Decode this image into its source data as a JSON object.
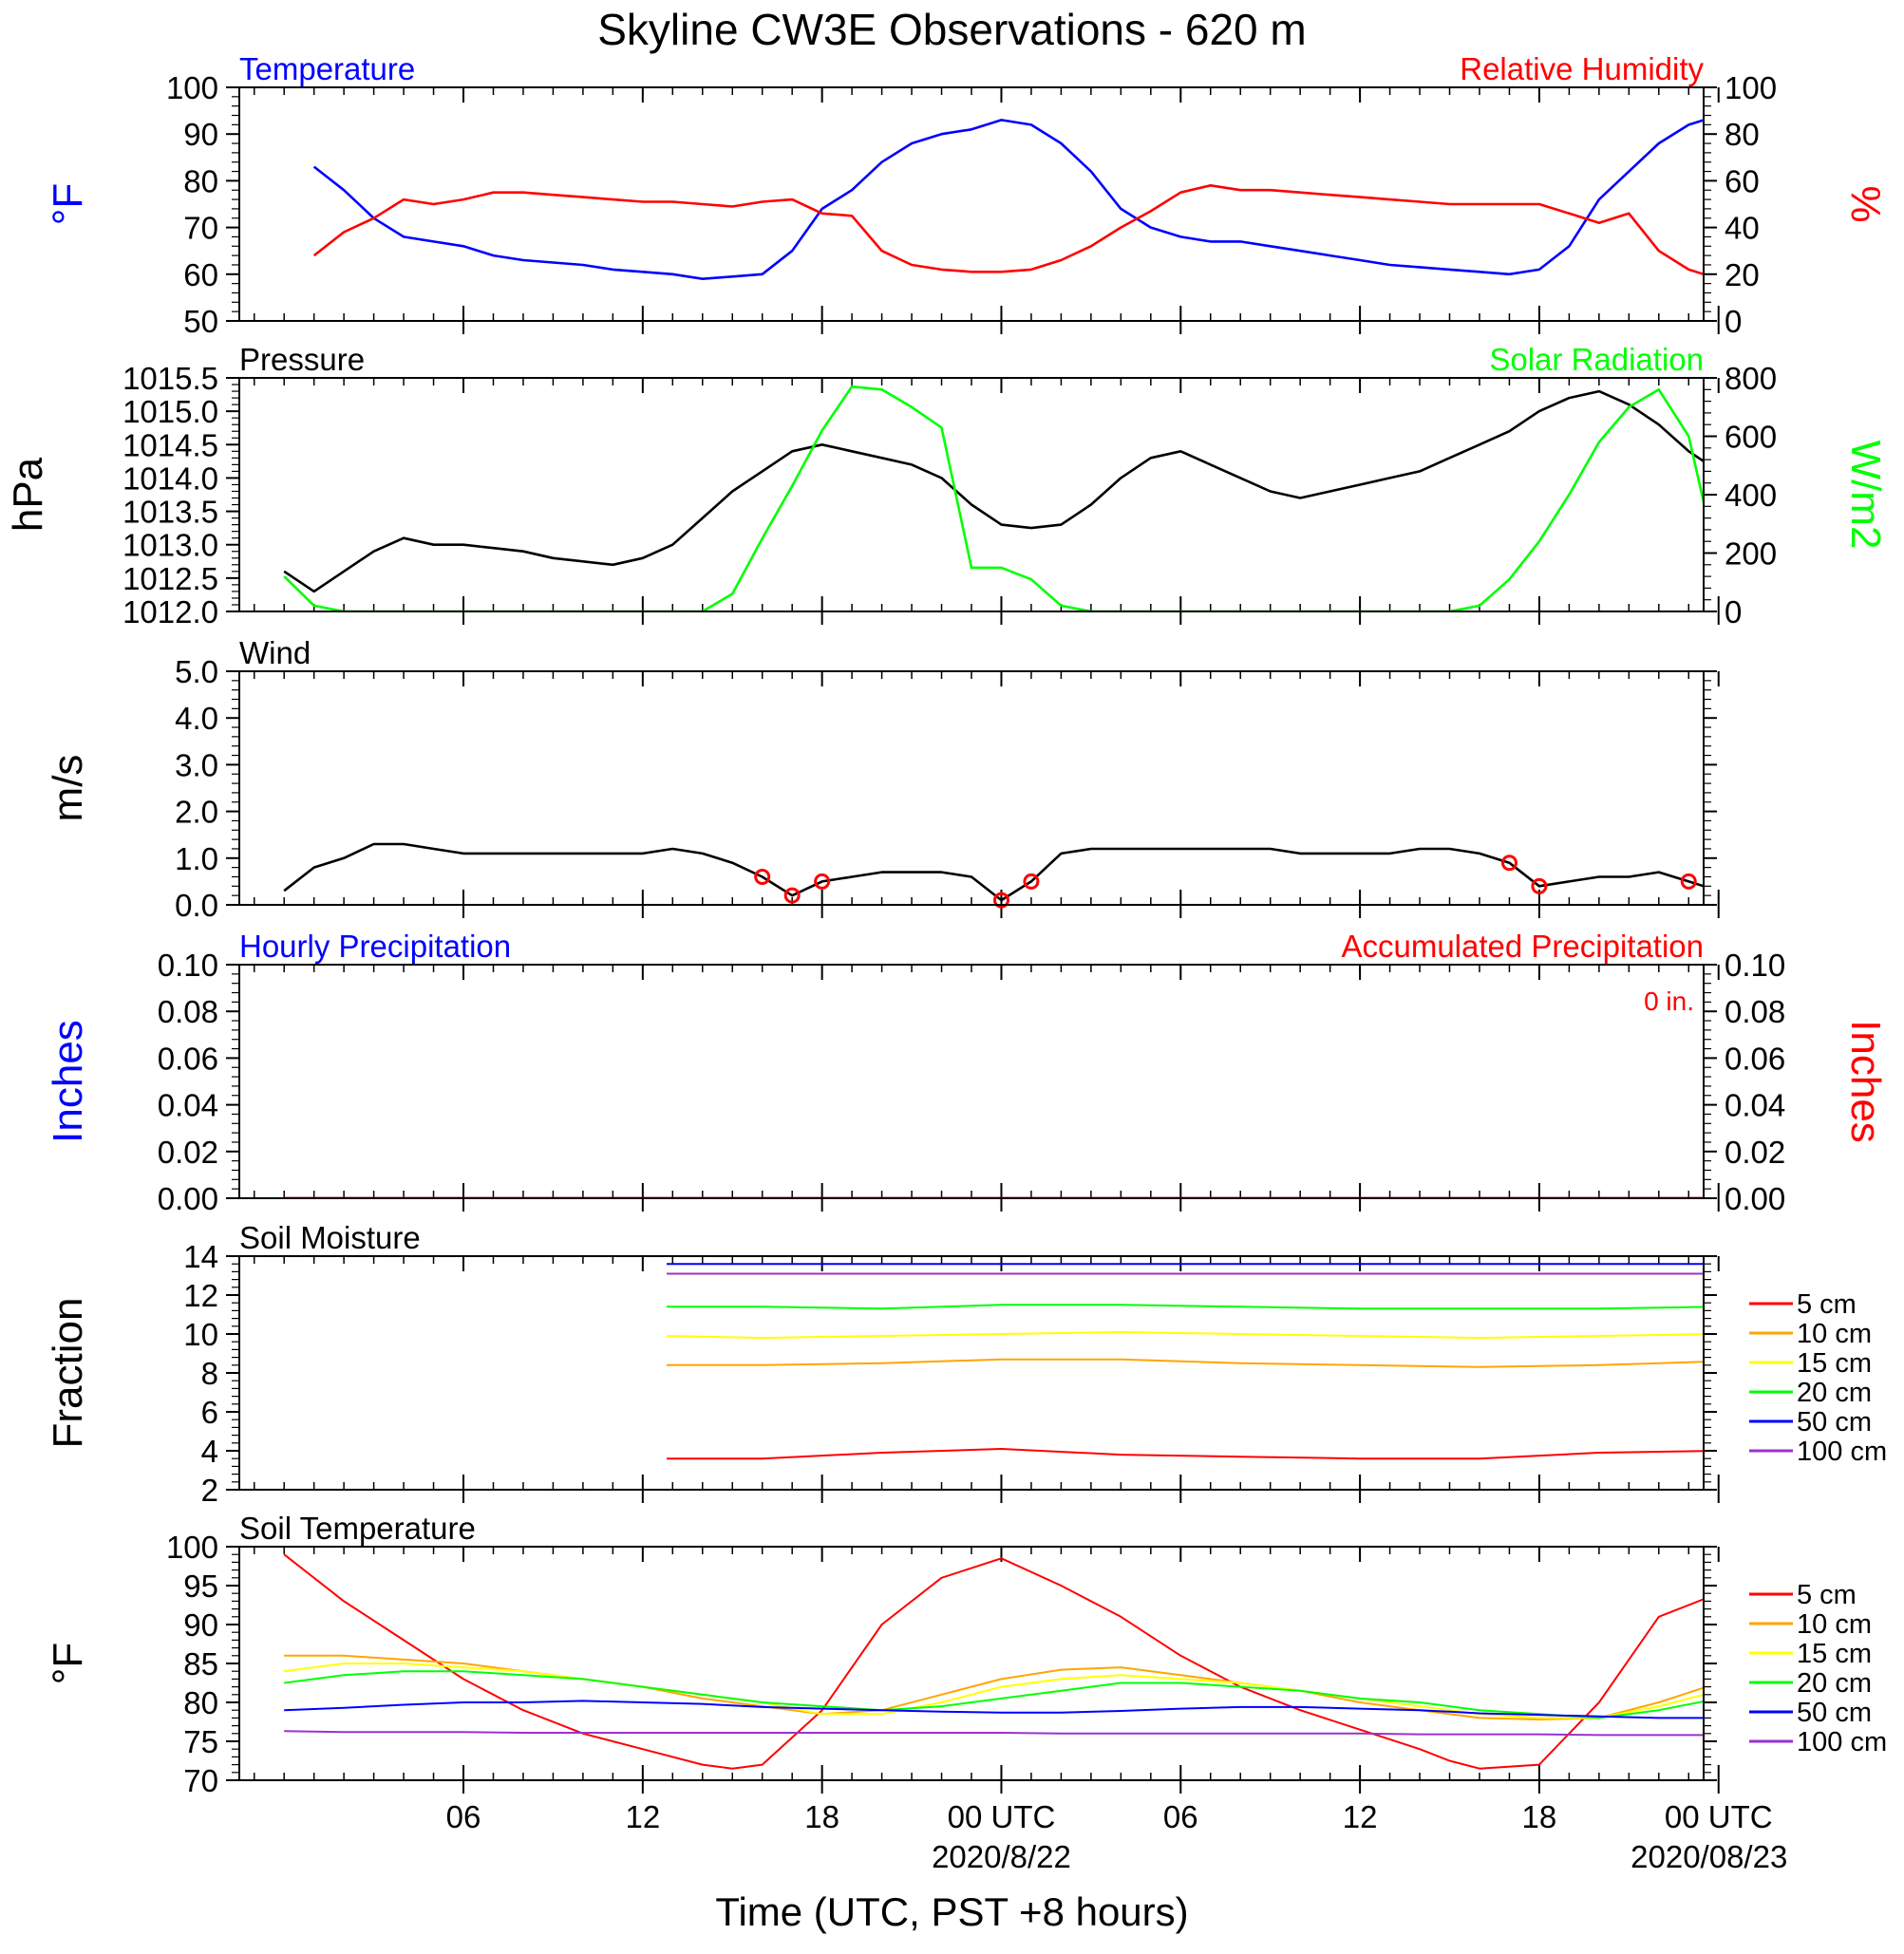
{
  "title": "Skyline CW3E Observations - 620 m",
  "x_axis": {
    "label": "Time (UTC, PST +8 hours)",
    "tick_labels": [
      "06",
      "12",
      "18",
      "00 UTC",
      "06",
      "12",
      "18",
      "00 UTC"
    ],
    "date_labels": [
      "2020/8/22",
      "2020/08/23"
    ]
  },
  "chart_data": [
    {
      "type": "line",
      "panel": "temperature-humidity",
      "left_title": "Temperature",
      "right_title": "Relative Humidity",
      "ylabel_left": "°F",
      "ylabel_right": "%",
      "ylim_left": [
        50,
        100
      ],
      "ylim_right": [
        0,
        100
      ],
      "yticks_left": [
        "50",
        "60",
        "70",
        "80",
        "90",
        "100"
      ],
      "yticks_right": [
        "0",
        "20",
        "40",
        "60",
        "80",
        "100"
      ],
      "x_hours": [
        1,
        2,
        3,
        4,
        5,
        6,
        7,
        8,
        9,
        10,
        11,
        12,
        13,
        14,
        15,
        16,
        17,
        18,
        19,
        20,
        21,
        22,
        23,
        24,
        25,
        26,
        27,
        28,
        29,
        30,
        31,
        32,
        33,
        34,
        35,
        36,
        37,
        38,
        39,
        40,
        41,
        42,
        43,
        44,
        45,
        46,
        47,
        48,
        49
      ],
      "series": [
        {
          "name": "Temperature",
          "axis": "left",
          "color": "#0000ff",
          "values": [
            83,
            78,
            72,
            68,
            67,
            66,
            64,
            63,
            62.5,
            62,
            61,
            60.5,
            60,
            59,
            59.5,
            60,
            65,
            74,
            78,
            84,
            88,
            90,
            91,
            93,
            92,
            88,
            82,
            74,
            70,
            68,
            67,
            67,
            66,
            65,
            64,
            63,
            62,
            61.5,
            61,
            60.5,
            60,
            61,
            66,
            76,
            82,
            88,
            92,
            94,
            95
          ]
        },
        {
          "name": "Relative Humidity",
          "axis": "right",
          "color": "#ff0000",
          "values": [
            28,
            38,
            44,
            52,
            50,
            52,
            55,
            55,
            54,
            53,
            52,
            51,
            51,
            50,
            49,
            51,
            52,
            46,
            45,
            30,
            24,
            22,
            21,
            21,
            22,
            26,
            32,
            40,
            47,
            55,
            58,
            56,
            56,
            55,
            54,
            53,
            52,
            51,
            50,
            50,
            50,
            50,
            46,
            42,
            46,
            30,
            22,
            18,
            20
          ]
        }
      ]
    },
    {
      "type": "line",
      "panel": "pressure-solar",
      "left_title": "Pressure",
      "right_title": "Solar Radiation",
      "ylabel_left": "hPa",
      "ylabel_right": "W/m2",
      "ylim_left": [
        1012.0,
        1015.5
      ],
      "ylim_right": [
        0,
        800
      ],
      "yticks_left": [
        "1012.0",
        "1012.5",
        "1013.0",
        "1013.5",
        "1014.0",
        "1014.5",
        "1015.0",
        "1015.5"
      ],
      "yticks_right": [
        "0",
        "200",
        "400",
        "600",
        "800"
      ],
      "series": [
        {
          "name": "Pressure",
          "axis": "left",
          "color": "#000000",
          "x_hours": [
            0,
            1,
            2,
            3,
            4,
            5,
            6,
            7,
            8,
            9,
            10,
            11,
            12,
            13,
            14,
            15,
            16,
            17,
            18,
            19,
            20,
            21,
            22,
            23,
            24,
            25,
            26,
            27,
            28,
            29,
            30,
            31,
            32,
            33,
            34,
            35,
            36,
            37,
            38,
            39,
            40,
            41,
            42,
            43,
            44,
            45,
            46,
            47,
            48
          ],
          "values": [
            1012.6,
            1012.3,
            1012.6,
            1012.9,
            1013.1,
            1013.0,
            1013.0,
            1012.95,
            1012.9,
            1012.8,
            1012.75,
            1012.7,
            1012.8,
            1013.0,
            1013.4,
            1013.8,
            1014.1,
            1014.4,
            1014.5,
            1014.4,
            1014.3,
            1014.2,
            1014.0,
            1013.6,
            1013.3,
            1013.25,
            1013.3,
            1013.6,
            1014.0,
            1014.3,
            1014.4,
            1014.2,
            1014.0,
            1013.8,
            1013.7,
            1013.8,
            1013.9,
            1014.0,
            1014.1,
            1014.3,
            1014.5,
            1014.7,
            1015.0,
            1015.2,
            1015.3,
            1015.1,
            1014.8,
            1014.4,
            1014.1
          ]
        },
        {
          "name": "Solar Radiation",
          "axis": "right",
          "color": "#00ff00",
          "x_hours": [
            0,
            1,
            2,
            3,
            4,
            5,
            6,
            7,
            8,
            9,
            10,
            11,
            12,
            13,
            14,
            15,
            16,
            17,
            18,
            19,
            20,
            21,
            22,
            23,
            24,
            25,
            26,
            27,
            28,
            29,
            30,
            31,
            32,
            33,
            34,
            35,
            36,
            37,
            38,
            39,
            40,
            41,
            42,
            43,
            44,
            45,
            46,
            47,
            48
          ],
          "values": [
            120,
            20,
            0,
            0,
            0,
            0,
            0,
            0,
            0,
            0,
            0,
            0,
            0,
            0,
            0,
            60,
            250,
            430,
            620,
            770,
            760,
            700,
            630,
            150,
            150,
            110,
            20,
            0,
            0,
            0,
            0,
            0,
            0,
            0,
            0,
            0,
            0,
            0,
            0,
            0,
            20,
            110,
            240,
            400,
            580,
            700,
            760,
            600,
            150
          ]
        }
      ]
    },
    {
      "type": "line",
      "panel": "wind",
      "left_title": "Wind",
      "ylabel_left": "m/s",
      "ylim_left": [
        0.0,
        5.0
      ],
      "yticks_left": [
        "0.0",
        "1.0",
        "2.0",
        "3.0",
        "4.0",
        "5.0"
      ],
      "series": [
        {
          "name": "Wind",
          "axis": "left",
          "color": "#000000",
          "x_hours": [
            0,
            1,
            2,
            3,
            4,
            5,
            6,
            7,
            8,
            9,
            10,
            11,
            12,
            13,
            14,
            15,
            16,
            17,
            18,
            19,
            20,
            21,
            22,
            23,
            24,
            25,
            26,
            27,
            28,
            29,
            30,
            31,
            32,
            33,
            34,
            35,
            36,
            37,
            38,
            39,
            40,
            41,
            42,
            43,
            44,
            45,
            46,
            47,
            48
          ],
          "values": [
            0.3,
            0.8,
            1.0,
            1.3,
            1.3,
            1.2,
            1.1,
            1.1,
            1.1,
            1.1,
            1.1,
            1.1,
            1.1,
            1.2,
            1.1,
            0.9,
            0.6,
            0.2,
            0.5,
            0.6,
            0.7,
            0.7,
            0.7,
            0.6,
            0.1,
            0.5,
            1.1,
            1.2,
            1.2,
            1.2,
            1.2,
            1.2,
            1.2,
            1.2,
            1.1,
            1.1,
            1.1,
            1.1,
            1.2,
            1.2,
            1.1,
            0.9,
            0.4,
            0.5,
            0.6,
            0.6,
            0.7,
            0.5,
            0.3
          ]
        }
      ],
      "calm_markers_hours": [
        16,
        17,
        18,
        24,
        25,
        41,
        42,
        47
      ]
    },
    {
      "type": "line",
      "panel": "precipitation",
      "left_title": "Hourly Precipitation",
      "right_title": "Accumulated Precipitation",
      "annotation": "0 in.",
      "ylabel_left": "Inches",
      "ylabel_right": "Inches",
      "ylim_left": [
        0.0,
        0.1
      ],
      "ylim_right": [
        0.0,
        0.1
      ],
      "yticks_left": [
        "0.00",
        "0.02",
        "0.04",
        "0.06",
        "0.08",
        "0.10"
      ],
      "yticks_right": [
        "0.00",
        "0.02",
        "0.04",
        "0.06",
        "0.08",
        "0.10"
      ],
      "series": [
        {
          "name": "Hourly Precipitation",
          "axis": "left",
          "color": "#0000ff",
          "x_hours": [
            0,
            48
          ],
          "values": [
            0,
            0
          ]
        },
        {
          "name": "Accumulated Precipitation",
          "axis": "right",
          "color": "#ff0000",
          "x_hours": [
            0,
            48
          ],
          "values": [
            0,
            0
          ]
        }
      ]
    },
    {
      "type": "line",
      "panel": "soil-moisture",
      "left_title": "Soil Moisture",
      "ylabel_left": "Fraction",
      "ylim_left": [
        2,
        14
      ],
      "yticks_left": [
        "2",
        "4",
        "6",
        "8",
        "10",
        "12",
        "14"
      ],
      "x_hours": [
        12.8,
        16,
        20,
        24,
        28,
        32,
        36,
        40,
        44,
        48
      ],
      "series": [
        {
          "name": "5 cm",
          "color": "#ff0000",
          "values": [
            3.6,
            3.6,
            3.9,
            4.1,
            3.8,
            3.7,
            3.6,
            3.6,
            3.9,
            4.0
          ]
        },
        {
          "name": "10 cm",
          "color": "#ffa500",
          "values": [
            8.4,
            8.4,
            8.5,
            8.7,
            8.7,
            8.5,
            8.4,
            8.3,
            8.4,
            8.6
          ]
        },
        {
          "name": "15 cm",
          "color": "#ffff00",
          "values": [
            9.9,
            9.8,
            9.9,
            10.0,
            10.1,
            10.0,
            9.9,
            9.8,
            9.9,
            10.0
          ]
        },
        {
          "name": "20 cm",
          "color": "#00ff00",
          "values": [
            11.4,
            11.4,
            11.3,
            11.5,
            11.5,
            11.4,
            11.3,
            11.3,
            11.3,
            11.4
          ]
        },
        {
          "name": "50 cm",
          "color": "#0000ff",
          "values": [
            13.6,
            13.6,
            13.6,
            13.6,
            13.6,
            13.6,
            13.6,
            13.6,
            13.6,
            13.6
          ]
        },
        {
          "name": "100 cm",
          "color": "#9a32cd",
          "values": [
            13.1,
            13.1,
            13.1,
            13.1,
            13.1,
            13.1,
            13.1,
            13.1,
            13.1,
            13.1
          ]
        }
      ]
    },
    {
      "type": "line",
      "panel": "soil-temperature",
      "left_title": "Soil Temperature",
      "ylabel_left": "°F",
      "ylim_left": [
        70,
        100
      ],
      "yticks_left": [
        "70",
        "75",
        "80",
        "85",
        "90",
        "95",
        "100"
      ],
      "x_hours": [
        0,
        2,
        4,
        6,
        8,
        10,
        12,
        14,
        15,
        16,
        18,
        20,
        22,
        24,
        26,
        28,
        30,
        32,
        34,
        36,
        38,
        39,
        40,
        42,
        44,
        46,
        48
      ],
      "series": [
        {
          "name": "5 cm",
          "color": "#ff0000",
          "values": [
            99,
            93,
            88,
            83,
            79,
            76,
            74,
            72,
            71.5,
            72,
            79,
            90,
            96,
            98.5,
            95,
            91,
            86,
            82,
            79,
            76.5,
            74,
            72.5,
            71.5,
            72,
            80,
            91,
            94
          ]
        },
        {
          "name": "10 cm",
          "color": "#ffa500",
          "values": [
            86,
            86,
            85.5,
            85,
            84,
            83,
            82,
            80.5,
            80,
            79.5,
            78.5,
            79,
            81,
            83,
            84.2,
            84.5,
            83.5,
            82.5,
            81.5,
            80,
            79,
            78.5,
            78,
            77.8,
            78,
            80,
            82.5
          ]
        },
        {
          "name": "15 cm",
          "color": "#ffff00",
          "values": [
            84,
            85,
            85,
            84.5,
            84,
            83,
            82,
            81,
            80.5,
            80,
            78.5,
            78.5,
            80,
            82,
            83,
            83.5,
            83,
            82.5,
            81.5,
            80.5,
            79.5,
            79,
            78.5,
            78,
            78,
            79.5,
            81.5
          ]
        },
        {
          "name": "20 cm",
          "color": "#00ff00",
          "values": [
            82.5,
            83.5,
            84,
            84,
            83.5,
            83,
            82,
            81,
            80.5,
            80,
            79.5,
            79,
            79.5,
            80.5,
            81.5,
            82.5,
            82.5,
            82,
            81.5,
            80.5,
            80,
            79.5,
            79,
            78.5,
            78,
            79,
            80.5
          ]
        },
        {
          "name": "50 cm",
          "color": "#0000ff",
          "values": [
            79,
            79.3,
            79.7,
            80,
            80,
            80.2,
            80,
            79.8,
            79.6,
            79.4,
            79.2,
            79,
            78.8,
            78.7,
            78.7,
            78.9,
            79.2,
            79.4,
            79.4,
            79.2,
            79,
            78.8,
            78.6,
            78.4,
            78.2,
            78,
            78
          ]
        },
        {
          "name": "100 cm",
          "color": "#9a32cd",
          "values": [
            76.3,
            76.2,
            76.2,
            76.2,
            76.1,
            76.1,
            76.1,
            76.1,
            76.1,
            76.1,
            76.1,
            76.1,
            76.1,
            76.1,
            76.0,
            76.0,
            76.0,
            76.0,
            76.0,
            76.0,
            75.9,
            75.9,
            75.9,
            75.9,
            75.8,
            75.8,
            75.8
          ]
        }
      ]
    }
  ]
}
